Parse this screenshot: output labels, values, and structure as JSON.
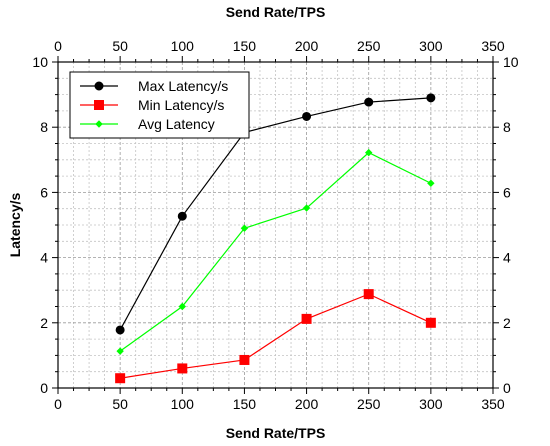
{
  "chart_data": {
    "type": "line",
    "xlabel": "Send Rate/TPS",
    "ylabel": "Latency/s",
    "xlim": [
      0,
      350
    ],
    "ylim": [
      0,
      10
    ],
    "x_ticks": [
      "0",
      "50",
      "100",
      "150",
      "200",
      "250",
      "300",
      "350"
    ],
    "y_ticks": [
      "0",
      "2",
      "4",
      "6",
      "8",
      "10"
    ],
    "grid": true,
    "legend_position": "top-left",
    "x": [
      50,
      100,
      150,
      200,
      250,
      300
    ],
    "series": [
      {
        "name": "Max Latency/s",
        "color": "#000000",
        "marker": "circle",
        "values": [
          1.78,
          5.27,
          7.84,
          8.33,
          8.77,
          8.9
        ]
      },
      {
        "name": "Min Latency/s",
        "color": "#ff0000",
        "marker": "square",
        "values": [
          0.3,
          0.6,
          0.86,
          2.12,
          2.88,
          2.0
        ]
      },
      {
        "name": "Avg Latency",
        "color": "#00ff00",
        "marker": "diamond",
        "values": [
          1.13,
          2.5,
          4.9,
          5.52,
          7.22,
          6.28
        ]
      }
    ]
  }
}
